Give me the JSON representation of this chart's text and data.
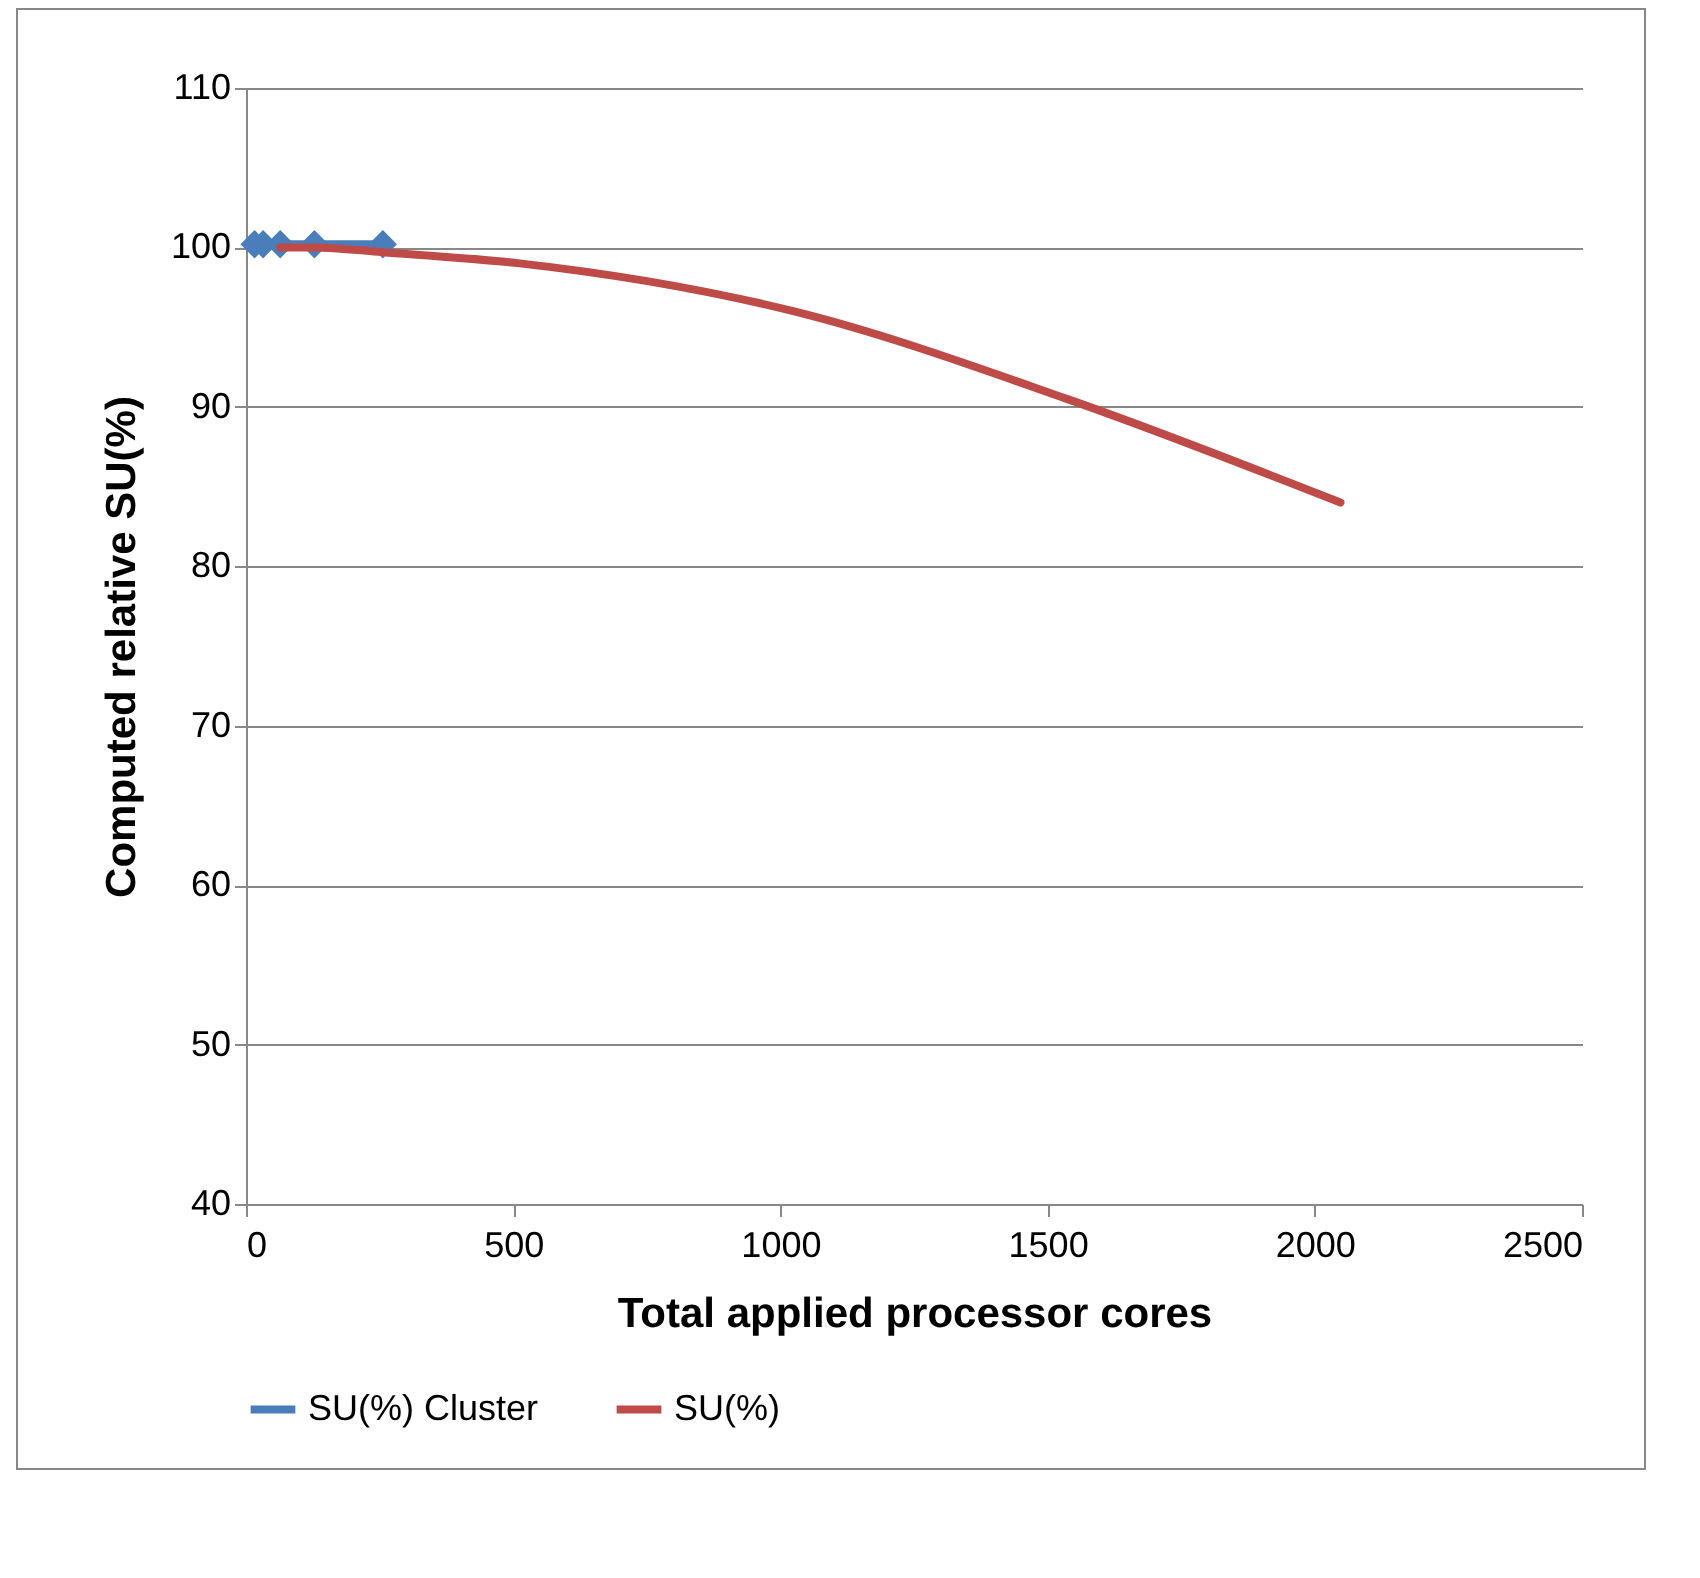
{
  "chart_data": {
    "type": "line",
    "xlabel": "Total applied processor cores",
    "ylabel": "Computed relative SU(%)",
    "xlim": [
      0,
      2500
    ],
    "xticks": [
      0,
      500,
      1000,
      1500,
      2000,
      2500
    ],
    "ylim": [
      40,
      110
    ],
    "yticks": [
      40,
      50,
      60,
      70,
      80,
      90,
      100,
      110
    ],
    "grid": "y",
    "legend": "bottom",
    "series": [
      {
        "name": "SU(%) Cluster",
        "color": "#4a7ebb",
        "marker": "diamond",
        "x": [
          16,
          32,
          64,
          128,
          256
        ],
        "values": [
          100.2,
          100.2,
          100.2,
          100.2,
          100.2
        ]
      },
      {
        "name": "SU(%)",
        "color": "#be4b48",
        "marker": "none",
        "x": [
          64,
          128,
          256,
          512,
          1024,
          1536,
          2048
        ],
        "values": [
          100,
          100,
          99.7,
          99,
          96,
          90.5,
          84
        ]
      }
    ]
  }
}
